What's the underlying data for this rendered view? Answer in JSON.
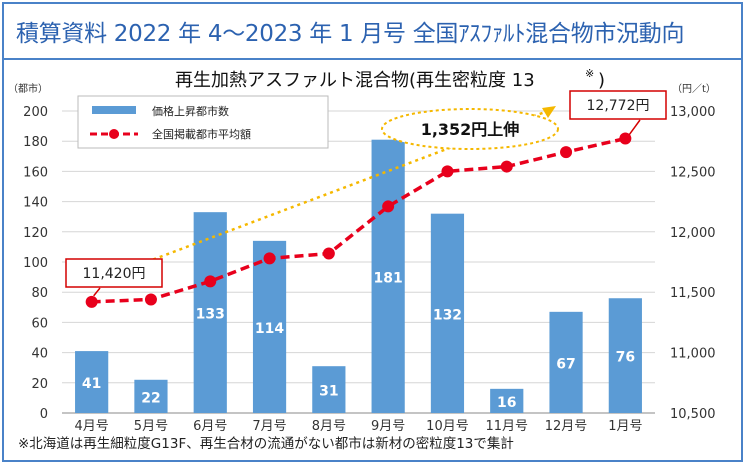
{
  "header": {
    "title": "積算資料 2022 年 4～2023 年 1 月号 全国ｱｽﾌｧﾙﾄ混合物市況動向"
  },
  "chart_data": {
    "type": "bar+line",
    "title": "再生加熱アスファルト混合物(再生密粒度 13",
    "title_mark": "※",
    "title_close": ")",
    "categories": [
      "4月号",
      "5月号",
      "6月号",
      "7月号",
      "8月号",
      "9月号",
      "10月号",
      "11月号",
      "12月号",
      "1月号"
    ],
    "y_left_unit": "（都市）",
    "y_right_unit": "（円／t）",
    "y_left_ticks": [
      "0",
      "20",
      "40",
      "60",
      "80",
      "100",
      "120",
      "140",
      "160",
      "180",
      "200"
    ],
    "y_right_ticks": [
      "10,500",
      "11,000",
      "11,500",
      "12,000",
      "12,500",
      "13,000"
    ],
    "ylim_left": [
      0,
      200
    ],
    "ylim_right": [
      10500,
      13000
    ],
    "series": [
      {
        "name": "価格上昇都市数",
        "kind": "bar",
        "axis": "left",
        "color": "#5b9bd5",
        "values": [
          41,
          22,
          133,
          114,
          31,
          181,
          132,
          16,
          67,
          76
        ]
      },
      {
        "name": "全国掲載都市平均額",
        "kind": "line",
        "axis": "right",
        "color": "#e8001c",
        "values": [
          11420,
          11440,
          11590,
          11780,
          11820,
          12210,
          12500,
          12540,
          12660,
          12772
        ]
      }
    ],
    "annotations": {
      "start_label": "11,420円",
      "end_label": "12,772円",
      "diff_label": "1,352円上伸"
    },
    "grid": true,
    "legend": "top-left"
  },
  "footnote": "※北海道は再生細粒度G13F、再生合材の流通がない都市は新材の密粒度13で集計"
}
